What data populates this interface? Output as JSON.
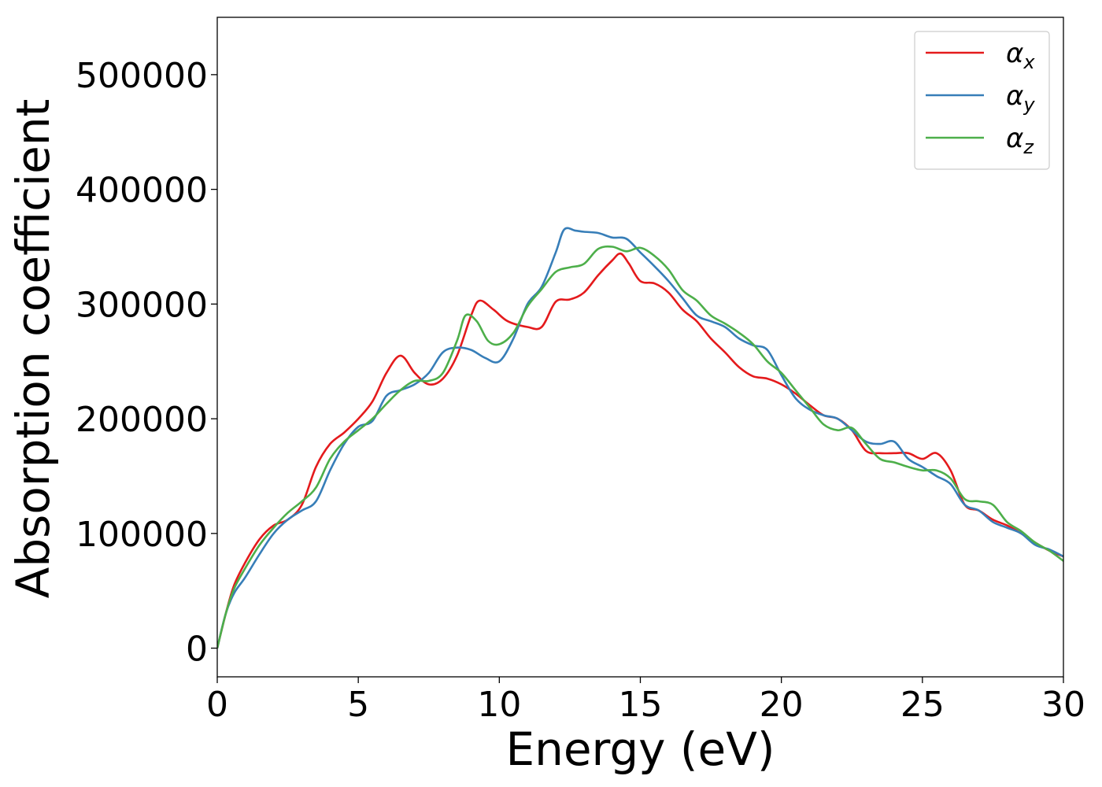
{
  "chart_data": {
    "type": "line",
    "title": "",
    "xlabel": "Energy (eV)",
    "ylabel": "Absorption coefficient",
    "xlim": [
      0,
      30
    ],
    "ylim": [
      -25000,
      550000
    ],
    "xticks": [
      0,
      5,
      10,
      15,
      20,
      25,
      30
    ],
    "xtick_labels": [
      "0",
      "5",
      "10",
      "15",
      "20",
      "25",
      "30"
    ],
    "yticks": [
      0,
      100000,
      200000,
      300000,
      400000,
      500000
    ],
    "ytick_labels": [
      "0",
      "100000",
      "200000",
      "300000",
      "400000",
      "500000"
    ],
    "grid": false,
    "legend_position": "top-right",
    "series": [
      {
        "name": "αx",
        "legend_base": "α",
        "legend_sub": "x",
        "color": "#e41a1c",
        "x": [
          0,
          0.3,
          0.6,
          1.0,
          1.5,
          2.0,
          2.5,
          3.0,
          3.5,
          4.0,
          4.5,
          5.0,
          5.5,
          6.0,
          6.5,
          7.0,
          7.5,
          8.0,
          8.5,
          9.0,
          9.3,
          9.8,
          10.3,
          11.0,
          11.5,
          12.0,
          12.5,
          13.0,
          13.5,
          14.0,
          14.3,
          14.6,
          15.0,
          15.5,
          16.0,
          16.5,
          17.0,
          17.5,
          18.0,
          18.5,
          19.0,
          19.5,
          20.0,
          20.5,
          21.0,
          21.5,
          22.0,
          22.5,
          23.0,
          23.5,
          24.0,
          24.5,
          25.0,
          25.5,
          26.0,
          26.5,
          27.0,
          27.5,
          28.0,
          28.5,
          29.0,
          29.5,
          30.0
        ],
        "y": [
          0,
          30000,
          55000,
          75000,
          95000,
          107000,
          112000,
          125000,
          158000,
          178000,
          188000,
          200000,
          215000,
          240000,
          255000,
          240000,
          230000,
          235000,
          255000,
          290000,
          303000,
          295000,
          285000,
          280000,
          280000,
          302000,
          304000,
          310000,
          325000,
          338000,
          344000,
          335000,
          320000,
          318000,
          310000,
          295000,
          285000,
          270000,
          258000,
          245000,
          237000,
          235000,
          230000,
          222000,
          212000,
          203000,
          200000,
          190000,
          172000,
          170000,
          170000,
          170000,
          165000,
          170000,
          155000,
          125000,
          120000,
          112000,
          107000,
          100000,
          92000,
          85000,
          80000
        ]
      },
      {
        "name": "αy",
        "legend_base": "α",
        "legend_sub": "y",
        "color": "#377eb8",
        "x": [
          0,
          0.3,
          0.6,
          1.0,
          1.5,
          2.0,
          2.5,
          3.0,
          3.5,
          4.0,
          4.5,
          5.0,
          5.5,
          6.0,
          6.5,
          7.0,
          7.5,
          8.0,
          8.5,
          9.0,
          9.5,
          10.0,
          10.5,
          11.0,
          11.5,
          12.0,
          12.3,
          12.7,
          13.0,
          13.5,
          14.0,
          14.5,
          15.0,
          15.5,
          16.0,
          16.5,
          17.0,
          17.5,
          18.0,
          18.5,
          19.0,
          19.5,
          20.0,
          20.5,
          21.0,
          21.5,
          22.0,
          22.5,
          23.0,
          23.5,
          24.0,
          24.5,
          25.0,
          25.5,
          26.0,
          26.5,
          27.0,
          27.5,
          28.0,
          28.5,
          29.0,
          29.5,
          30.0
        ],
        "y": [
          0,
          30000,
          48000,
          62000,
          82000,
          100000,
          112000,
          120000,
          128000,
          155000,
          178000,
          193000,
          198000,
          220000,
          225000,
          230000,
          240000,
          258000,
          262000,
          260000,
          253000,
          250000,
          270000,
          300000,
          315000,
          345000,
          365000,
          364000,
          363000,
          362000,
          358000,
          357000,
          345000,
          333000,
          320000,
          305000,
          290000,
          285000,
          280000,
          270000,
          264000,
          260000,
          238000,
          218000,
          208000,
          203000,
          200000,
          190000,
          180000,
          178000,
          180000,
          165000,
          158000,
          150000,
          143000,
          125000,
          120000,
          110000,
          105000,
          100000,
          90000,
          86000,
          80000
        ]
      },
      {
        "name": "αz",
        "legend_base": "α",
        "legend_sub": "z",
        "color": "#4daf4a",
        "x": [
          0,
          0.3,
          0.6,
          1.0,
          1.5,
          2.0,
          2.5,
          3.0,
          3.5,
          4.0,
          4.5,
          5.0,
          5.5,
          6.0,
          6.5,
          7.0,
          7.5,
          8.0,
          8.5,
          8.8,
          9.2,
          9.6,
          10.0,
          10.5,
          11.0,
          11.5,
          12.0,
          12.5,
          13.0,
          13.5,
          14.0,
          14.5,
          15.0,
          15.5,
          16.0,
          16.5,
          17.0,
          17.5,
          18.0,
          18.5,
          19.0,
          19.5,
          20.0,
          20.5,
          21.0,
          21.5,
          22.0,
          22.5,
          23.0,
          23.5,
          24.0,
          24.5,
          25.0,
          25.5,
          26.0,
          26.5,
          27.0,
          27.5,
          28.0,
          28.5,
          29.0,
          29.5,
          30.0
        ],
        "y": [
          0,
          30000,
          52000,
          70000,
          90000,
          105000,
          118000,
          128000,
          140000,
          165000,
          180000,
          190000,
          200000,
          213000,
          225000,
          233000,
          233000,
          240000,
          268000,
          290000,
          285000,
          268000,
          265000,
          275000,
          298000,
          313000,
          328000,
          332000,
          335000,
          348000,
          350000,
          346000,
          349000,
          342000,
          330000,
          312000,
          303000,
          290000,
          283000,
          275000,
          265000,
          250000,
          240000,
          225000,
          210000,
          195000,
          190000,
          192000,
          178000,
          165000,
          162000,
          158000,
          155000,
          155000,
          148000,
          130000,
          128000,
          125000,
          110000,
          102000,
          92000,
          85000,
          76000
        ]
      }
    ]
  }
}
